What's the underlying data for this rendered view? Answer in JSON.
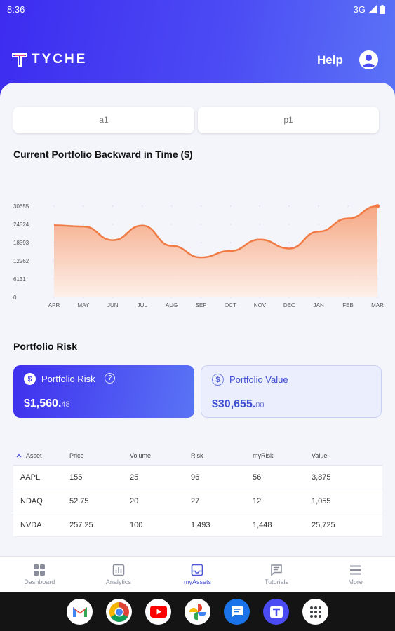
{
  "status": {
    "time": "8:36",
    "network": "3G"
  },
  "header": {
    "brand": "TYCHE",
    "help_label": "Help"
  },
  "selectors": {
    "account": "a1",
    "portfolio": "p1"
  },
  "chart_section": {
    "title": "Current Portfolio Backward in Time ($)"
  },
  "chart_data": {
    "type": "area",
    "categories": [
      "APR",
      "MAY",
      "JUN",
      "JUL",
      "AUG",
      "SEP",
      "OCT",
      "NOV",
      "DEC",
      "JAN",
      "FEB",
      "MAR"
    ],
    "values": [
      24200,
      23800,
      19200,
      24100,
      17300,
      13400,
      15600,
      19400,
      16400,
      22100,
      26500,
      30655
    ],
    "yticks": [
      "30655",
      "24524",
      "18393",
      "12262",
      "6131",
      "0"
    ],
    "ylim": [
      0,
      30655
    ],
    "grid": "dotted",
    "legend": "none",
    "colors": {
      "line": "#f07b45",
      "fill_top": "#f5a783",
      "fill_bottom": "#fdf0ea"
    }
  },
  "risk_section": {
    "title": "Portfolio Risk"
  },
  "cards": {
    "risk": {
      "label": "Portfolio Risk",
      "amount": "$1,560.",
      "cents": "48"
    },
    "value": {
      "label": "Portfolio Value",
      "amount": "$30,655.",
      "cents": "00"
    }
  },
  "table": {
    "headers": [
      "Asset",
      "Price",
      "Volume",
      "Risk",
      "myRisk",
      "Value"
    ],
    "rows": [
      [
        "AAPL",
        "155",
        "25",
        "96",
        "56",
        "3,875"
      ],
      [
        "NDAQ",
        "52.75",
        "20",
        "27",
        "12",
        "1,055"
      ],
      [
        "NVDA",
        "257.25",
        "100",
        "1,493",
        "1,448",
        "25,725"
      ]
    ]
  },
  "nav": [
    {
      "label": "Dashboard",
      "icon": "grid-icon"
    },
    {
      "label": "Analytics",
      "icon": "bar-chart-icon"
    },
    {
      "label": "myAssets",
      "icon": "inbox-icon"
    },
    {
      "label": "Tutorials",
      "icon": "message-icon"
    },
    {
      "label": "More",
      "icon": "menu-icon"
    }
  ],
  "accent": "#4a55d8"
}
